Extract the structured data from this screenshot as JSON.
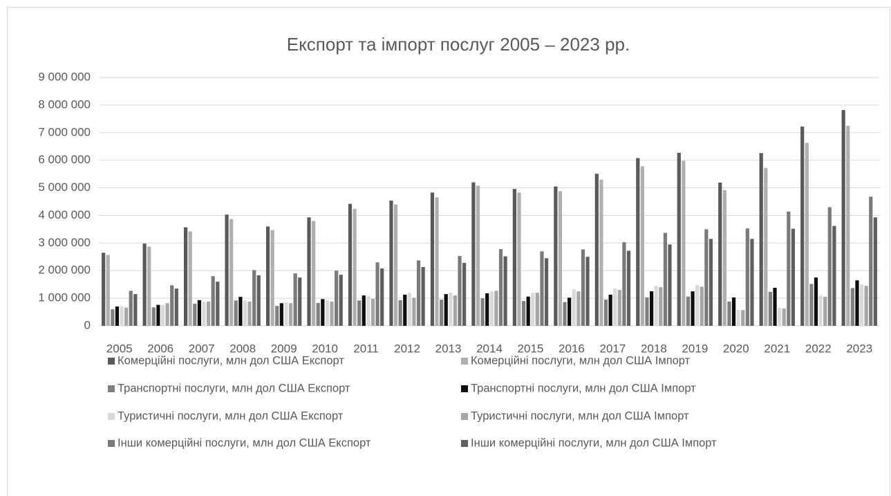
{
  "chart_data": {
    "type": "bar",
    "title": "Експорт та імпорт послуг 2005 – 2023 рр.",
    "categories": [
      "2005",
      "2006",
      "2007",
      "2008",
      "2009",
      "2010",
      "2011",
      "2012",
      "2013",
      "2014",
      "2015",
      "2016",
      "2017",
      "2018",
      "2019",
      "2020",
      "2021",
      "2022",
      "2023"
    ],
    "series": [
      {
        "name": "Комерційні послуги, млн дол США Експорт",
        "color": "#595959",
        "values": [
          2650000,
          2980000,
          3570000,
          4030000,
          3600000,
          3930000,
          4420000,
          4540000,
          4830000,
          5200000,
          4960000,
          5050000,
          5510000,
          6080000,
          6270000,
          5190000,
          6260000,
          7220000,
          7820000
        ]
      },
      {
        "name": "Комерційні послуги, млн дол США Імпорт",
        "color": "#afafaf",
        "values": [
          2570000,
          2870000,
          3420000,
          3870000,
          3470000,
          3800000,
          4240000,
          4400000,
          4660000,
          5080000,
          4830000,
          4880000,
          5300000,
          5780000,
          5980000,
          4920000,
          5720000,
          6630000,
          7250000
        ]
      },
      {
        "name": "Транспортні послуги, млн дол США Експорт",
        "color": "#808080",
        "values": [
          600000,
          670000,
          800000,
          920000,
          720000,
          830000,
          920000,
          930000,
          950000,
          1000000,
          900000,
          860000,
          950000,
          1030000,
          1060000,
          880000,
          1230000,
          1520000,
          1370000
        ]
      },
      {
        "name": "Транспортні послуги, млн дол США Імпорт",
        "color": "#0d0d0d",
        "values": [
          700000,
          760000,
          930000,
          1050000,
          820000,
          970000,
          1100000,
          1130000,
          1150000,
          1180000,
          1060000,
          1020000,
          1130000,
          1250000,
          1250000,
          1030000,
          1380000,
          1750000,
          1650000
        ]
      },
      {
        "name": "Туристичні послуги, млн дол США Експорт",
        "color": "#d9d9d9",
        "values": [
          700000,
          760000,
          870000,
          920000,
          850000,
          930000,
          1070000,
          1200000,
          1200000,
          1250000,
          1200000,
          1330000,
          1350000,
          1450000,
          1480000,
          580000,
          650000,
          1100000,
          1500000
        ]
      },
      {
        "name": "Туристичні послуги, млн дол США Імпорт",
        "color": "#a6a6a6",
        "values": [
          660000,
          820000,
          880000,
          880000,
          820000,
          880000,
          980000,
          1020000,
          1100000,
          1270000,
          1200000,
          1250000,
          1300000,
          1400000,
          1420000,
          570000,
          630000,
          1050000,
          1450000
        ]
      },
      {
        "name": "Інши комерційні послуги, млн дол США Експорт",
        "color": "#7a7a7a",
        "values": [
          1270000,
          1470000,
          1800000,
          2020000,
          1900000,
          2000000,
          2300000,
          2370000,
          2530000,
          2780000,
          2700000,
          2770000,
          3030000,
          3370000,
          3500000,
          3530000,
          4140000,
          4300000,
          4680000
        ]
      },
      {
        "name": "Інши комерційні послуги, млн дол США Імпорт",
        "color": "#5f5f5f",
        "values": [
          1150000,
          1350000,
          1600000,
          1830000,
          1750000,
          1850000,
          2080000,
          2130000,
          2280000,
          2520000,
          2450000,
          2500000,
          2720000,
          2950000,
          3150000,
          3150000,
          3520000,
          3620000,
          3930000
        ]
      }
    ],
    "ylim": [
      0,
      9000000
    ],
    "yticks": [
      0,
      {
        "value": 1000000,
        "label": "1 000 000"
      },
      {
        "value": 2000000,
        "label": "2 000 000"
      },
      {
        "value": 3000000,
        "label": "3 000 000"
      },
      {
        "value": 4000000,
        "label": "4 000 000"
      },
      {
        "value": 5000000,
        "label": "5 000 000"
      },
      {
        "value": 6000000,
        "label": "6 000 000"
      },
      {
        "value": 7000000,
        "label": "7 000 000"
      },
      {
        "value": 8000000,
        "label": "8 000 000"
      },
      {
        "value": 9000000,
        "label": "9 000 000"
      }
    ],
    "grid": true,
    "legend": "bottom"
  }
}
